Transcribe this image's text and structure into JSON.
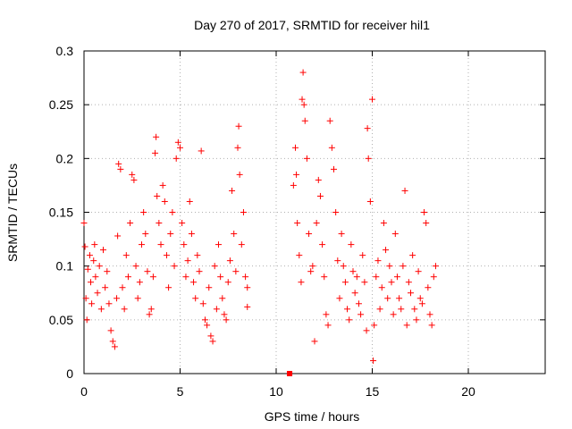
{
  "chart_data": {
    "type": "scatter",
    "title": "Day 270 of 2017, SRMTID for receiver hil1",
    "xlabel": "GPS time / hours",
    "ylabel": "SRMTID / TECUs",
    "xlim": [
      0,
      24
    ],
    "ylim": [
      0,
      0.3
    ],
    "x_ticks": [
      "0",
      "5",
      "10",
      "15",
      "20"
    ],
    "y_ticks": [
      "0",
      "0.05",
      "0.1",
      "0.15",
      "0.2",
      "0.25",
      "0.3"
    ],
    "grid": true,
    "marker": "+",
    "color": "#ff0000",
    "series": [
      {
        "points": [
          [
            0.0,
            0.14
          ],
          [
            0.05,
            0.118
          ],
          [
            0.1,
            0.07
          ],
          [
            0.15,
            0.05
          ],
          [
            0.2,
            0.097
          ],
          [
            0.3,
            0.11
          ],
          [
            0.35,
            0.085
          ],
          [
            0.4,
            0.065
          ],
          [
            0.5,
            0.105
          ],
          [
            0.55,
            0.12
          ],
          [
            0.6,
            0.09
          ],
          [
            0.7,
            0.075
          ],
          [
            0.8,
            0.1
          ],
          [
            0.9,
            0.06
          ],
          [
            1.0,
            0.115
          ],
          [
            1.1,
            0.08
          ],
          [
            1.2,
            0.095
          ],
          [
            1.3,
            0.065
          ],
          [
            1.4,
            0.04
          ],
          [
            1.5,
            0.03
          ],
          [
            1.6,
            0.025
          ],
          [
            1.7,
            0.07
          ],
          [
            1.75,
            0.128
          ],
          [
            1.8,
            0.195
          ],
          [
            1.9,
            0.19
          ],
          [
            2.0,
            0.08
          ],
          [
            2.1,
            0.06
          ],
          [
            2.2,
            0.11
          ],
          [
            2.3,
            0.09
          ],
          [
            2.4,
            0.14
          ],
          [
            2.5,
            0.185
          ],
          [
            2.6,
            0.18
          ],
          [
            2.7,
            0.1
          ],
          [
            2.8,
            0.07
          ],
          [
            2.9,
            0.085
          ],
          [
            3.0,
            0.12
          ],
          [
            3.1,
            0.15
          ],
          [
            3.2,
            0.13
          ],
          [
            3.3,
            0.095
          ],
          [
            3.4,
            0.055
          ],
          [
            3.5,
            0.06
          ],
          [
            3.6,
            0.09
          ],
          [
            3.7,
            0.205
          ],
          [
            3.75,
            0.22
          ],
          [
            3.8,
            0.165
          ],
          [
            3.9,
            0.14
          ],
          [
            4.0,
            0.12
          ],
          [
            4.1,
            0.175
          ],
          [
            4.2,
            0.16
          ],
          [
            4.3,
            0.11
          ],
          [
            4.4,
            0.08
          ],
          [
            4.5,
            0.13
          ],
          [
            4.6,
            0.15
          ],
          [
            4.7,
            0.1
          ],
          [
            4.8,
            0.2
          ],
          [
            4.9,
            0.215
          ],
          [
            5.0,
            0.21
          ],
          [
            5.1,
            0.14
          ],
          [
            5.2,
            0.12
          ],
          [
            5.3,
            0.09
          ],
          [
            5.4,
            0.105
          ],
          [
            5.5,
            0.16
          ],
          [
            5.6,
            0.13
          ],
          [
            5.7,
            0.085
          ],
          [
            5.8,
            0.07
          ],
          [
            5.9,
            0.11
          ],
          [
            6.0,
            0.095
          ],
          [
            6.1,
            0.207
          ],
          [
            6.2,
            0.065
          ],
          [
            6.3,
            0.05
          ],
          [
            6.4,
            0.045
          ],
          [
            6.5,
            0.08
          ],
          [
            6.6,
            0.035
          ],
          [
            6.7,
            0.03
          ],
          [
            6.8,
            0.1
          ],
          [
            6.9,
            0.06
          ],
          [
            7.0,
            0.12
          ],
          [
            7.1,
            0.09
          ],
          [
            7.2,
            0.07
          ],
          [
            7.3,
            0.055
          ],
          [
            7.4,
            0.05
          ],
          [
            7.5,
            0.085
          ],
          [
            7.6,
            0.105
          ],
          [
            7.7,
            0.17
          ],
          [
            7.8,
            0.13
          ],
          [
            7.9,
            0.095
          ],
          [
            8.0,
            0.21
          ],
          [
            8.05,
            0.23
          ],
          [
            8.1,
            0.185
          ],
          [
            8.2,
            0.12
          ],
          [
            8.3,
            0.15
          ],
          [
            8.4,
            0.09
          ],
          [
            8.5,
            0.08
          ],
          [
            8.5,
            0.062
          ],
          [
            10.7,
            0.0
          ],
          [
            10.9,
            0.175
          ],
          [
            11.0,
            0.21
          ],
          [
            11.05,
            0.185
          ],
          [
            11.1,
            0.14
          ],
          [
            11.2,
            0.11
          ],
          [
            11.3,
            0.085
          ],
          [
            11.35,
            0.255
          ],
          [
            11.4,
            0.28
          ],
          [
            11.45,
            0.25
          ],
          [
            11.5,
            0.235
          ],
          [
            11.6,
            0.2
          ],
          [
            11.7,
            0.13
          ],
          [
            11.8,
            0.095
          ],
          [
            11.9,
            0.1
          ],
          [
            12.0,
            0.03
          ],
          [
            12.1,
            0.14
          ],
          [
            12.2,
            0.18
          ],
          [
            12.3,
            0.165
          ],
          [
            12.4,
            0.12
          ],
          [
            12.5,
            0.09
          ],
          [
            12.6,
            0.055
          ],
          [
            12.7,
            0.045
          ],
          [
            12.8,
            0.235
          ],
          [
            12.9,
            0.21
          ],
          [
            13.0,
            0.19
          ],
          [
            13.1,
            0.15
          ],
          [
            13.2,
            0.105
          ],
          [
            13.3,
            0.07
          ],
          [
            13.4,
            0.13
          ],
          [
            13.5,
            0.1
          ],
          [
            13.6,
            0.085
          ],
          [
            13.7,
            0.06
          ],
          [
            13.8,
            0.05
          ],
          [
            13.9,
            0.12
          ],
          [
            14.0,
            0.095
          ],
          [
            14.1,
            0.075
          ],
          [
            14.2,
            0.09
          ],
          [
            14.3,
            0.065
          ],
          [
            14.4,
            0.055
          ],
          [
            14.5,
            0.11
          ],
          [
            14.6,
            0.085
          ],
          [
            14.7,
            0.04
          ],
          [
            14.75,
            0.228
          ],
          [
            14.8,
            0.2
          ],
          [
            14.9,
            0.16
          ],
          [
            15.0,
            0.255
          ],
          [
            15.05,
            0.012
          ],
          [
            15.1,
            0.045
          ],
          [
            15.2,
            0.09
          ],
          [
            15.3,
            0.105
          ],
          [
            15.4,
            0.06
          ],
          [
            15.5,
            0.08
          ],
          [
            15.6,
            0.14
          ],
          [
            15.7,
            0.115
          ],
          [
            15.8,
            0.07
          ],
          [
            15.9,
            0.1
          ],
          [
            16.0,
            0.085
          ],
          [
            16.1,
            0.055
          ],
          [
            16.2,
            0.13
          ],
          [
            16.3,
            0.09
          ],
          [
            16.4,
            0.07
          ],
          [
            16.5,
            0.06
          ],
          [
            16.6,
            0.1
          ],
          [
            16.7,
            0.17
          ],
          [
            16.8,
            0.045
          ],
          [
            16.9,
            0.085
          ],
          [
            17.0,
            0.075
          ],
          [
            17.1,
            0.11
          ],
          [
            17.2,
            0.06
          ],
          [
            17.3,
            0.05
          ],
          [
            17.4,
            0.095
          ],
          [
            17.5,
            0.07
          ],
          [
            17.6,
            0.065
          ],
          [
            17.7,
            0.15
          ],
          [
            17.8,
            0.14
          ],
          [
            17.9,
            0.08
          ],
          [
            18.0,
            0.055
          ],
          [
            18.1,
            0.045
          ],
          [
            18.2,
            0.09
          ],
          [
            18.3,
            0.1
          ]
        ]
      }
    ]
  }
}
